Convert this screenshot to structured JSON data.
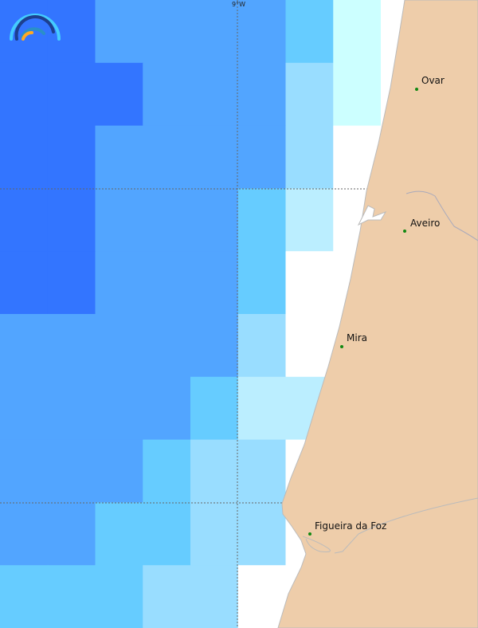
{
  "map": {
    "graticule_label": "9°W",
    "palette": {
      "D": "#3375ff",
      "M": "#52a5ff",
      "L": "#66ccff",
      "P": "#99ddff",
      "Q": "#bbeeff",
      "C": "#ccffff",
      "W": "#ffffff"
    },
    "land_color": "#eecdaa",
    "grid": [
      "DDMMMMLCW",
      "DDDMMMPCW",
      "DDMMMMPWW",
      "DDMMMLQWW",
      "DDMMMLWWW",
      "MMMMMPWWW",
      "MMMMLQQWW",
      "MMMLPPWWW",
      "MMLLPPWWW",
      "LLLPPWWWW"
    ],
    "cities": [
      {
        "name": "Ovar"
      },
      {
        "name": "Aveiro"
      },
      {
        "name": "Mira"
      },
      {
        "name": "Figueira da Foz"
      }
    ],
    "city_dot_color": "#118811"
  }
}
